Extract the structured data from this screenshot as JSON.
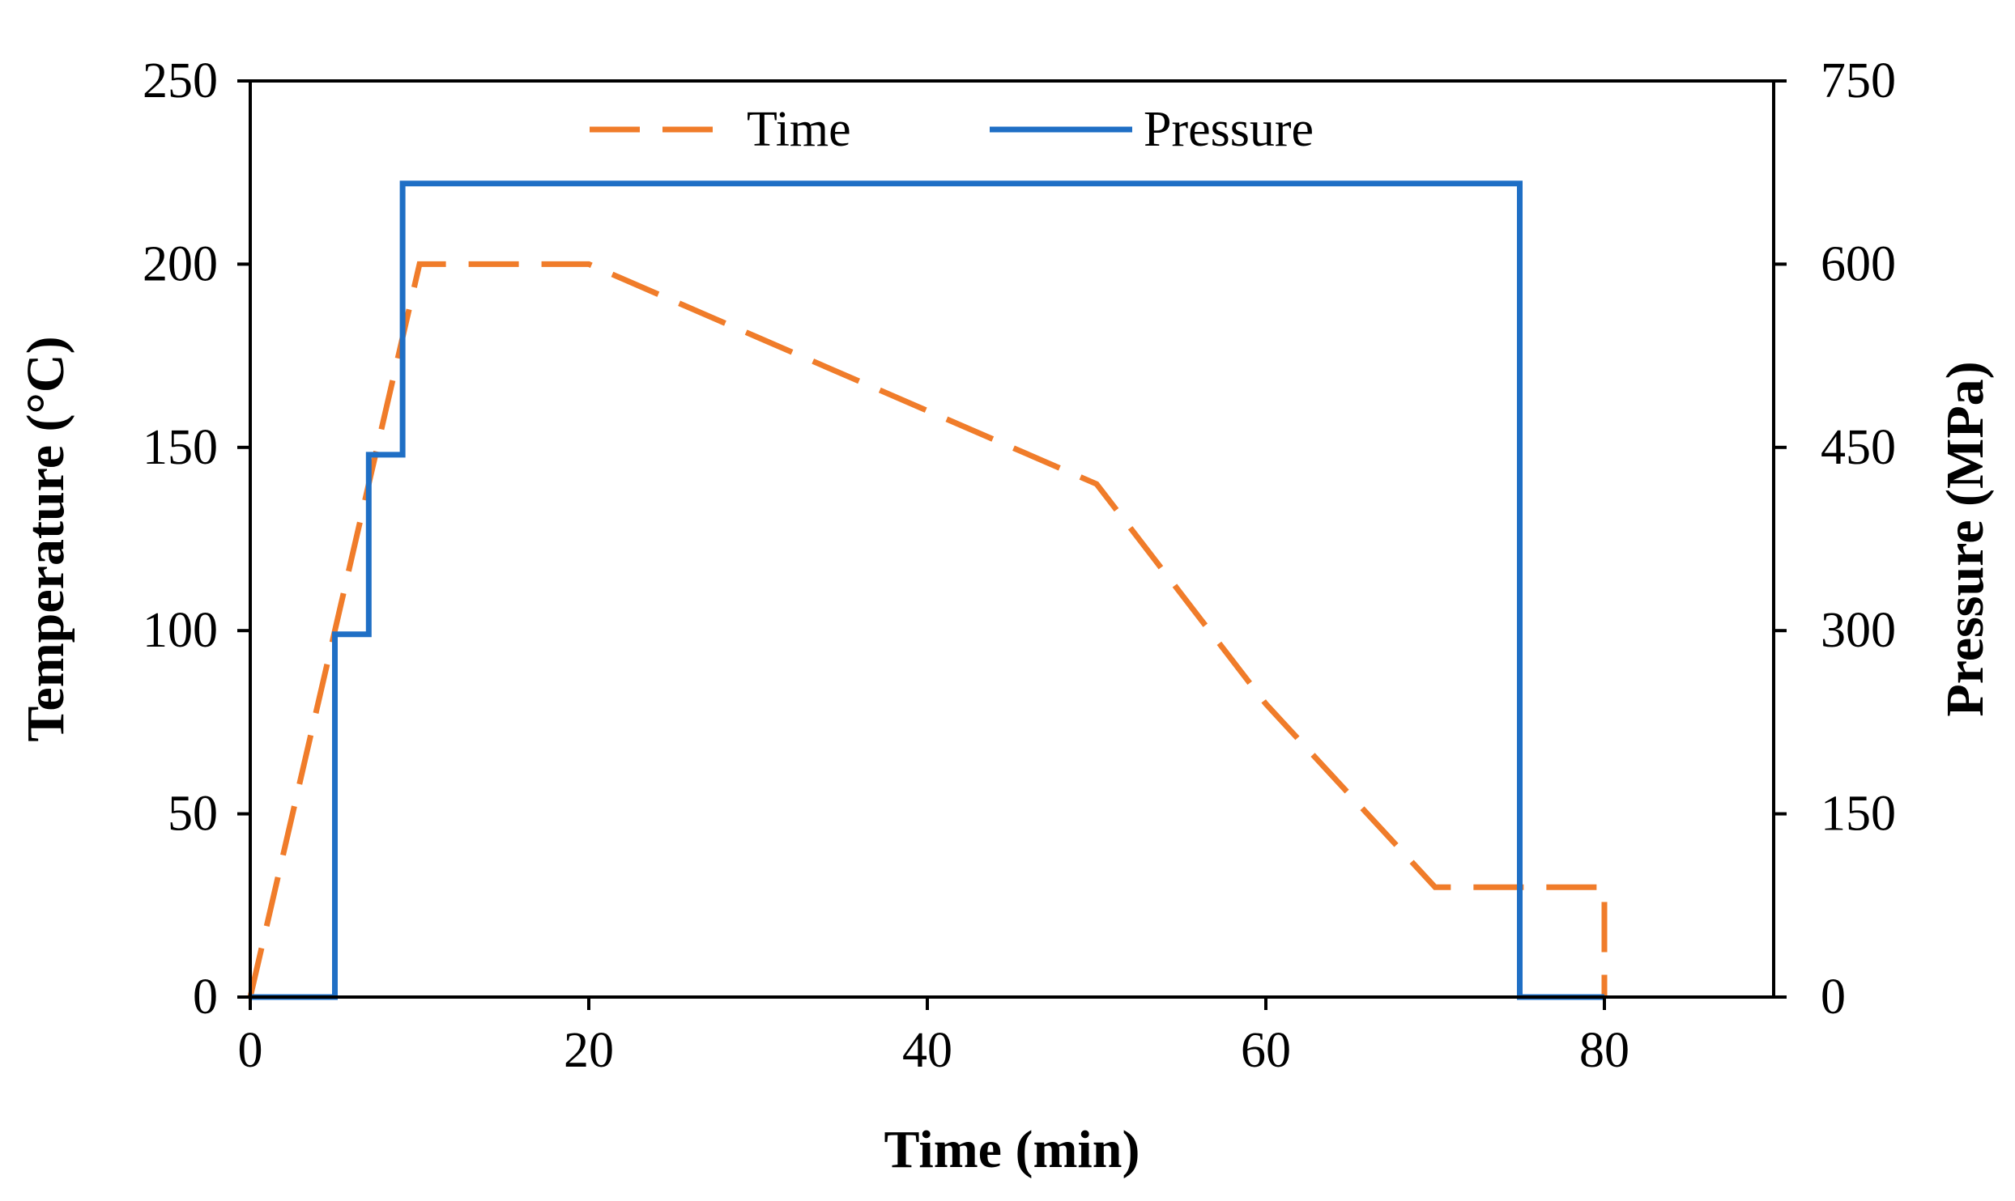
{
  "chart_data": {
    "type": "line",
    "title": "",
    "xlabel": "Time (min)",
    "ylabel_left": "Temperature (°C)",
    "ylabel_right": "Pressure (MPa)",
    "xlim": [
      0,
      90
    ],
    "ylim_left": [
      0,
      250
    ],
    "ylim_right": [
      0,
      750
    ],
    "x_ticks": [
      0,
      20,
      40,
      60,
      80
    ],
    "y_left_ticks": [
      0,
      50,
      100,
      150,
      200,
      250
    ],
    "y_right_ticks": [
      0,
      150,
      300,
      450,
      600,
      750
    ],
    "grid": false,
    "legend_position": "top",
    "series": [
      {
        "name": "Time",
        "axis": "left",
        "style": "dashed",
        "color": "#f07c2a",
        "x": [
          0,
          10,
          20,
          30,
          40,
          50,
          60,
          70,
          80,
          80
        ],
        "y": [
          0,
          200,
          200,
          180,
          160,
          140,
          80,
          30,
          30,
          0
        ]
      },
      {
        "name": "Pressure",
        "axis": "right",
        "style": "solid",
        "color": "#1f6fc5",
        "x": [
          0,
          5,
          5,
          7,
          7,
          9,
          9,
          75,
          75,
          80
        ],
        "y": [
          0,
          0,
          297,
          297,
          444,
          444,
          666,
          666,
          0,
          0
        ]
      }
    ]
  }
}
